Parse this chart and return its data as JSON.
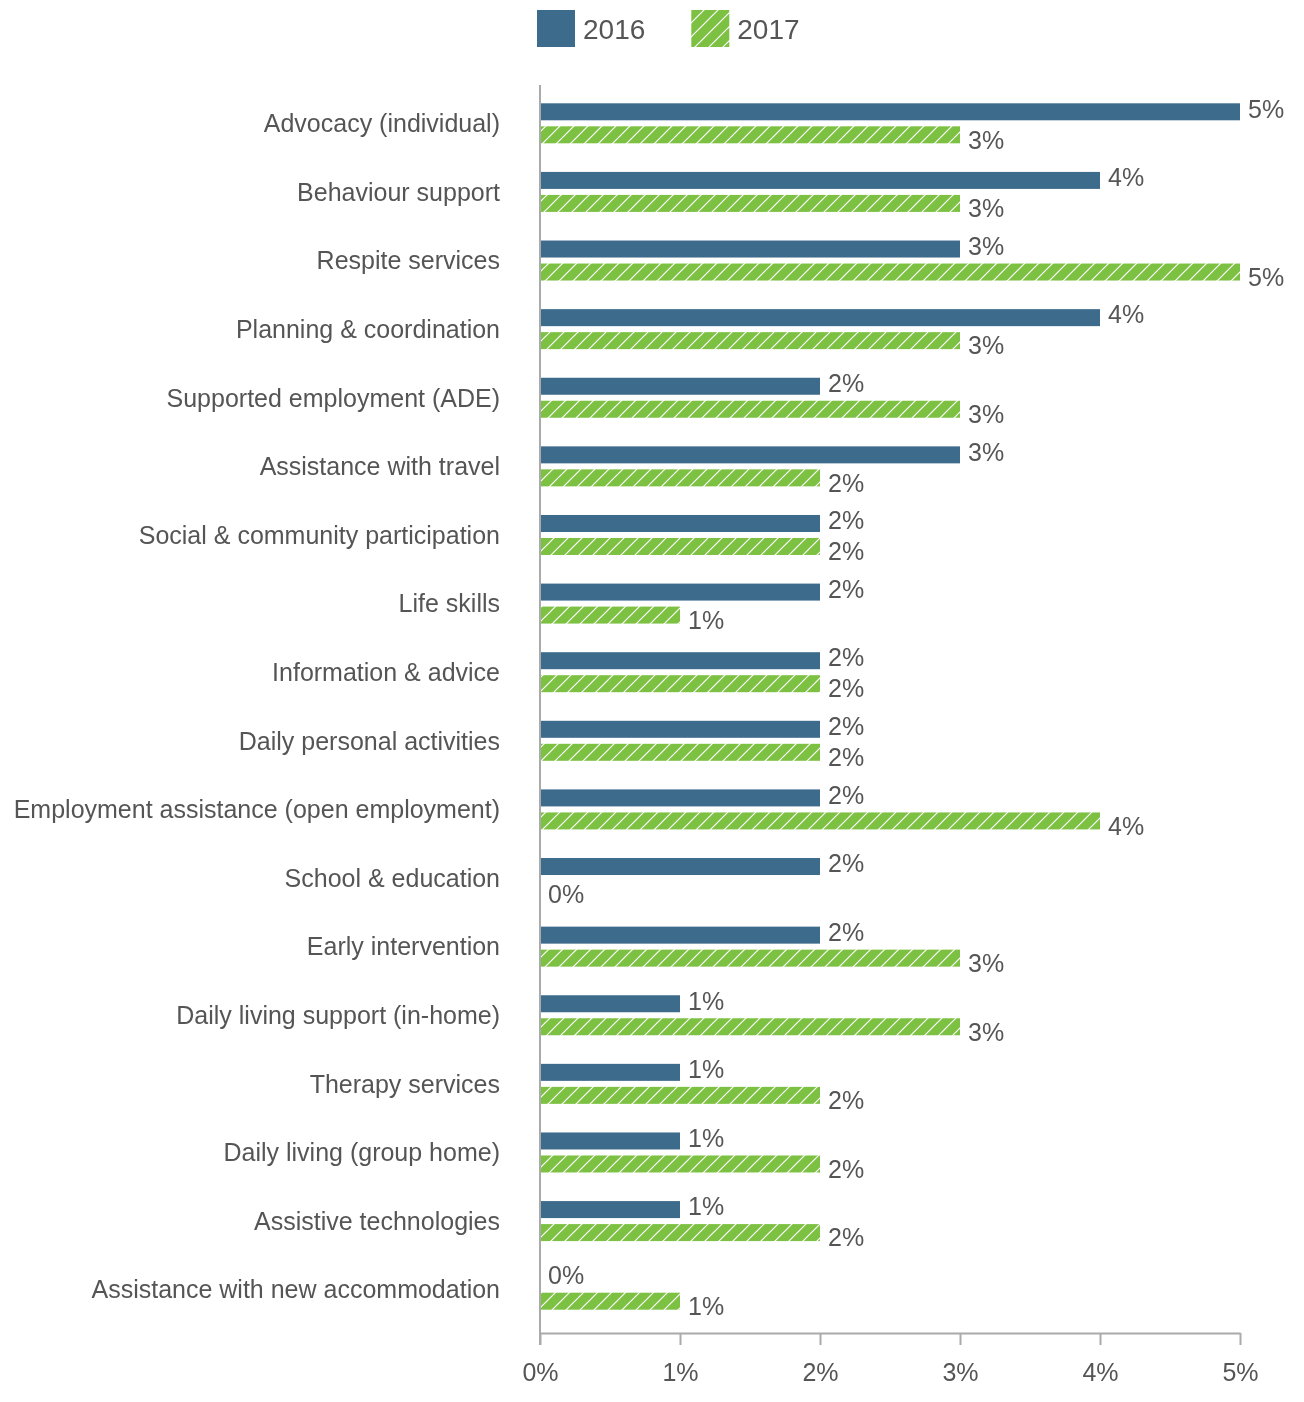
{
  "chart_data": {
    "type": "bar",
    "orientation": "horizontal",
    "categories": [
      "Advocacy (individual)",
      "Behaviour support",
      "Respite services",
      "Planning & coordination",
      "Supported employment (ADE)",
      "Assistance with travel",
      "Social & community participation",
      "Life skills",
      "Information & advice",
      "Daily personal activities",
      "Employment assistance (open employment)",
      "School & education",
      "Early intervention",
      "Daily living support (in-home)",
      "Therapy services",
      "Daily living (group home)",
      "Assistive technologies",
      "Assistance with new accommodation"
    ],
    "series": [
      {
        "name": "2016",
        "color": "#3d6b8c",
        "values": [
          5,
          4,
          3,
          4,
          2,
          3,
          2,
          2,
          2,
          2,
          2,
          2,
          2,
          1,
          1,
          1,
          1,
          0
        ],
        "value_labels": [
          "5%",
          "4%",
          "3%",
          "4%",
          "2%",
          "3%",
          "2%",
          "2%",
          "2%",
          "2%",
          "2%",
          "2%",
          "2%",
          "1%",
          "1%",
          "1%",
          "1%",
          "0%"
        ]
      },
      {
        "name": "2017",
        "color": "#7dc142",
        "values": [
          3,
          3,
          5,
          3,
          3,
          2,
          2,
          1,
          2,
          2,
          4,
          0,
          3,
          3,
          2,
          2,
          2,
          1
        ],
        "value_labels": [
          "3%",
          "3%",
          "5%",
          "3%",
          "3%",
          "2%",
          "2%",
          "1%",
          "2%",
          "2%",
          "4%",
          "0%",
          "3%",
          "3%",
          "2%",
          "2%",
          "2%",
          "1%"
        ]
      }
    ],
    "xlim": [
      0,
      5
    ],
    "xticks": [
      {
        "value": 0,
        "label": "0%"
      },
      {
        "value": 1,
        "label": "1%"
      },
      {
        "value": 2,
        "label": "2%"
      },
      {
        "value": 3,
        "label": "3%"
      },
      {
        "value": 4,
        "label": "4%"
      },
      {
        "value": 5,
        "label": "5%"
      }
    ],
    "legend": "top",
    "grid": false
  }
}
